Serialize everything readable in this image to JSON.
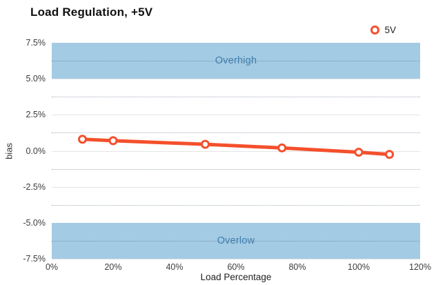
{
  "title": "Load Regulation, +5V",
  "legend": {
    "label": "5V"
  },
  "colors": {
    "line": "#f4502c",
    "marker_fill": "#ffffff",
    "band_fill": "#a4cbe4",
    "band_text": "#3e7dab",
    "grid_major": "#e4e4e4",
    "grid_minor": "#8aa0b4",
    "title_text": "#111111",
    "tick_text": "#3c3c3c"
  },
  "chart_data": {
    "type": "line",
    "title": "Load Regulation, +5V",
    "xlabel": "Load Percentage",
    "ylabel": "bias",
    "xlim": [
      0,
      120
    ],
    "ylim": [
      -7.5,
      7.5
    ],
    "xticks": {
      "values": [
        0,
        20,
        40,
        60,
        80,
        100,
        120
      ],
      "labels": [
        "0%",
        "20%",
        "40%",
        "60%",
        "80%",
        "100%",
        "120%"
      ]
    },
    "yticks": {
      "values": [
        7.5,
        5.0,
        2.5,
        0.0,
        -2.5,
        -5.0,
        -7.5
      ],
      "labels": [
        "7.5%",
        "5.0%",
        "2.5%",
        "0.0%",
        "-2.5%",
        "-5.0%",
        "-7.5%"
      ]
    },
    "minor_yticks": [
      6.25,
      3.75,
      1.25,
      -1.25,
      -3.75,
      -6.25
    ],
    "grid": "horizontal only: solid major lines, dotted minor lines; no vertical gridlines",
    "legend_position": "top-right",
    "bands": [
      {
        "label": "Overhigh",
        "from": 5.0,
        "to": 7.5
      },
      {
        "label": "Overlow",
        "from": -7.5,
        "to": -5.0
      }
    ],
    "series": [
      {
        "name": "5V",
        "x": [
          10,
          20,
          50,
          75,
          100,
          110
        ],
        "y": [
          0.8,
          0.7,
          0.45,
          0.2,
          -0.1,
          -0.25
        ]
      }
    ]
  }
}
